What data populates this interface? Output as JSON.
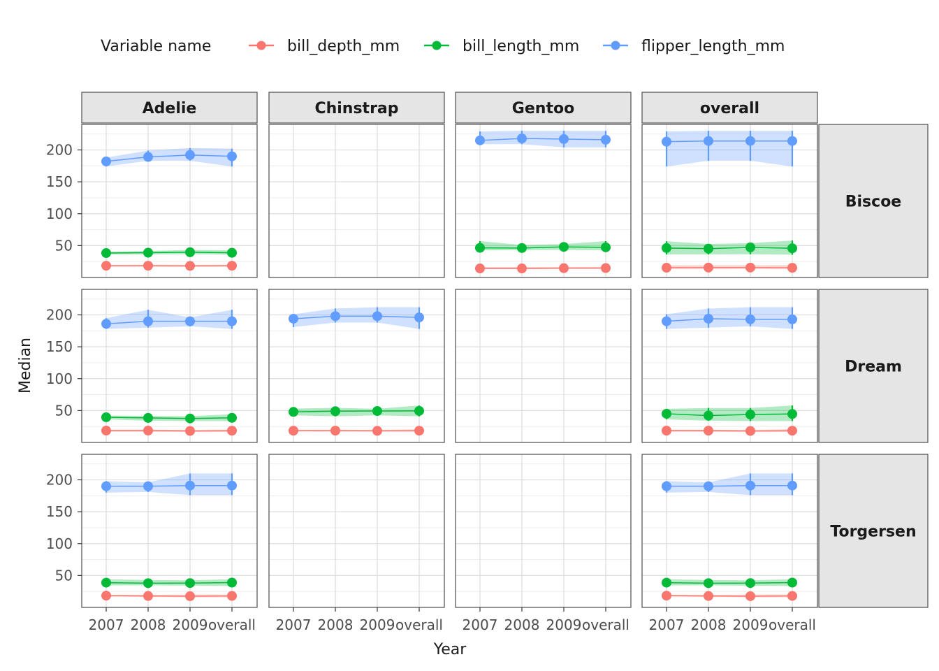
{
  "chart_data": {
    "type": "line",
    "xlabel": "Year",
    "ylabel": "Median",
    "legend": {
      "title": "Variable name",
      "position": "top"
    },
    "x_categories": [
      "2007",
      "2008",
      "2009",
      "overall"
    ],
    "ylim": [
      0,
      240
    ],
    "y_ticks": [
      50,
      100,
      150,
      200
    ],
    "grid": true,
    "columns": [
      "Adelie",
      "Chinstrap",
      "Gentoo",
      "overall"
    ],
    "rows": [
      "Biscoe",
      "Dream",
      "Torgersen"
    ],
    "series": [
      {
        "name": "bill_depth_mm",
        "color": "#F8766D"
      },
      {
        "name": "bill_length_mm",
        "color": "#00BA38"
      },
      {
        "name": "flipper_length_mm",
        "color": "#619CFF"
      }
    ],
    "panels": [
      {
        "row": "Biscoe",
        "col": "Adelie",
        "data": {
          "bill_depth_mm": {
            "median": [
              18.4,
              18.4,
              18.2,
              18.4
            ],
            "lo": [
              17.0,
              17.0,
              16.8,
              16.8
            ],
            "hi": [
              19.7,
              20.2,
              19.9,
              20.2
            ]
          },
          "bill_length_mm": {
            "median": [
              38.3,
              38.9,
              39.6,
              38.7
            ],
            "lo": [
              36.0,
              36.2,
              36.4,
              35.7
            ],
            "hi": [
              40.6,
              41.6,
              43.2,
              42.8
            ]
          },
          "flipper_length_mm": {
            "median": [
              182,
              189,
              192,
              190
            ],
            "lo": [
              174,
              183,
              183,
              174
            ],
            "hi": [
              188,
              199,
              203,
              202
            ]
          }
        }
      },
      {
        "row": "Biscoe",
        "col": "Chinstrap",
        "data": null
      },
      {
        "row": "Biscoe",
        "col": "Gentoo",
        "data": {
          "bill_depth_mm": {
            "median": [
              14.2,
              14.2,
              14.6,
              14.8
            ],
            "lo": [
              13.2,
              13.4,
              13.6,
              13.4
            ],
            "hi": [
              16.4,
              16.4,
              16.4,
              16.4
            ]
          },
          "bill_length_mm": {
            "median": [
              46.5,
              46.2,
              48.0,
              47.3
            ],
            "lo": [
              42.4,
              43.0,
              43.2,
              42.8
            ],
            "hi": [
              57.0,
              51.0,
              52.5,
              57.0
            ]
          },
          "flipper_length_mm": {
            "median": [
              215,
              218,
              217,
              216
            ],
            "lo": [
              209,
              209,
              204,
              204
            ],
            "hi": [
              229,
              230,
              230,
              230
            ]
          }
        }
      },
      {
        "row": "Biscoe",
        "col": "overall",
        "data": {
          "bill_depth_mm": {
            "median": [
              15.3,
              15.5,
              15.5,
              15.2
            ],
            "lo": [
              13.4,
              13.4,
              13.5,
              13.4
            ],
            "hi": [
              19.3,
              19.3,
              19.3,
              19.5
            ]
          },
          "bill_length_mm": {
            "median": [
              46.2,
              45.2,
              47.2,
              45.8
            ],
            "lo": [
              36.1,
              36.2,
              36.4,
              35.7
            ],
            "hi": [
              56.8,
              52.5,
              53.8,
              58.0
            ]
          },
          "flipper_length_mm": {
            "median": [
              213,
              214,
              214,
              214
            ],
            "lo": [
              174,
              183,
              183,
              174
            ],
            "hi": [
              229,
              230,
              230,
              230
            ]
          }
        }
      },
      {
        "row": "Dream",
        "col": "Adelie",
        "data": {
          "bill_depth_mm": {
            "median": [
              18.6,
              18.6,
              18.0,
              18.4
            ],
            "lo": [
              16.8,
              16.6,
              16.4,
              16.4
            ],
            "hi": [
              20.0,
              20.0,
              19.6,
              20.2
            ]
          },
          "bill_length_mm": {
            "median": [
              39.5,
              38.5,
              37.6,
              38.6
            ],
            "lo": [
              36.2,
              34.0,
              33.6,
              33.6
            ],
            "hi": [
              42.2,
              41.5,
              41.2,
              44.1
            ]
          },
          "flipper_length_mm": {
            "median": [
              186,
              190,
              190,
              190
            ],
            "lo": [
              178,
              180,
              182,
              178
            ],
            "hi": [
              195,
              208,
              196,
              208
            ]
          }
        }
      },
      {
        "row": "Dream",
        "col": "Chinstrap",
        "data": {
          "bill_depth_mm": {
            "median": [
              18.4,
              18.5,
              18.2,
              18.4
            ],
            "lo": [
              17.2,
              17.0,
              17.0,
              16.8
            ],
            "hi": [
              19.8,
              20.0,
              19.6,
              20.8
            ]
          },
          "bill_length_mm": {
            "median": [
              47.9,
              49.0,
              49.3,
              49.5
            ],
            "lo": [
              42.5,
              40.9,
              42.4,
              40.9
            ],
            "hi": [
              53.0,
              54.2,
              52.8,
              58.0
            ]
          },
          "flipper_length_mm": {
            "median": [
              194,
              198,
              198,
              196
            ],
            "lo": [
              181,
              188,
              188,
              178
            ],
            "hi": [
              201,
              210,
              212,
              212
            ]
          }
        }
      },
      {
        "row": "Dream",
        "col": "Gentoo",
        "data": null
      },
      {
        "row": "Dream",
        "col": "overall",
        "data": {
          "bill_depth_mm": {
            "median": [
              18.5,
              18.5,
              18.0,
              18.4
            ],
            "lo": [
              16.8,
              16.6,
              16.4,
              16.4
            ],
            "hi": [
              20.0,
              20.0,
              19.6,
              20.8
            ]
          },
          "bill_length_mm": {
            "median": [
              45.0,
              42.1,
              43.8,
              44.6
            ],
            "lo": [
              36.2,
              34.0,
              33.6,
              33.6
            ],
            "hi": [
              52.8,
              54.0,
              54.0,
              58.0
            ]
          },
          "flipper_length_mm": {
            "median": [
              190,
              194,
              193,
              193
            ],
            "lo": [
              178,
              180,
              182,
              178
            ],
            "hi": [
              201,
              210,
              212,
              212
            ]
          }
        }
      },
      {
        "row": "Torgersen",
        "col": "Adelie",
        "data": {
          "bill_depth_mm": {
            "median": [
              18.4,
              17.9,
              17.6,
              18.0
            ],
            "lo": [
              17.2,
              16.4,
              15.9,
              15.9
            ],
            "hi": [
              19.8,
              19.6,
              20.3,
              20.3
            ]
          },
          "bill_length_mm": {
            "median": [
              38.8,
              38.0,
              38.1,
              38.9
            ],
            "lo": [
              34.4,
              34.6,
              34.0,
              33.5
            ],
            "hi": [
              44.1,
              42.9,
              42.4,
              44.1
            ]
          },
          "flipper_length_mm": {
            "median": [
              190,
              190,
              191,
              191
            ],
            "lo": [
              180,
              181,
              176,
              176
            ],
            "hi": [
              198,
              196,
              210,
              210
            ]
          }
        }
      },
      {
        "row": "Torgersen",
        "col": "Chinstrap",
        "data": null
      },
      {
        "row": "Torgersen",
        "col": "Gentoo",
        "data": null
      },
      {
        "row": "Torgersen",
        "col": "overall",
        "data": {
          "bill_depth_mm": {
            "median": [
              18.4,
              17.9,
              17.6,
              18.0
            ],
            "lo": [
              17.2,
              16.4,
              15.9,
              15.9
            ],
            "hi": [
              19.8,
              19.6,
              20.3,
              20.3
            ]
          },
          "bill_length_mm": {
            "median": [
              38.8,
              38.0,
              38.1,
              38.9
            ],
            "lo": [
              34.4,
              34.6,
              34.0,
              33.5
            ],
            "hi": [
              44.1,
              42.9,
              42.4,
              44.1
            ]
          },
          "flipper_length_mm": {
            "median": [
              190,
              190,
              191,
              191
            ],
            "lo": [
              180,
              181,
              176,
              176
            ],
            "hi": [
              198,
              196,
              210,
              210
            ]
          }
        }
      }
    ]
  }
}
